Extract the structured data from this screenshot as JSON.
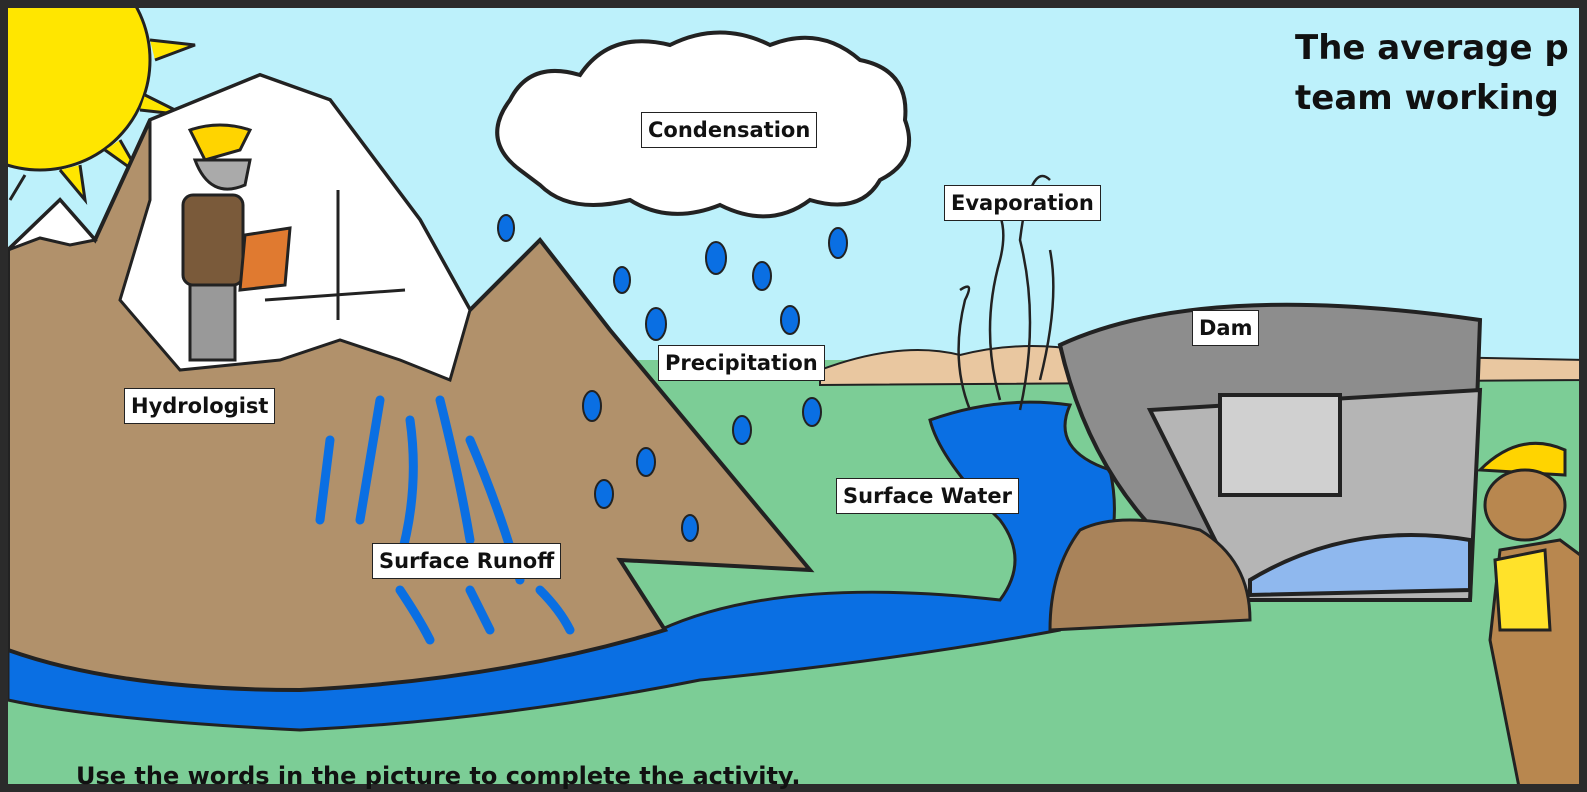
{
  "header": {
    "lines": [
      "The average p",
      "team working"
    ]
  },
  "labels": [
    "Condensation",
    "Evaporation",
    "Dam",
    "Precipitation",
    "Hydrologist",
    "Surface Water",
    "Surface Runoff"
  ],
  "footer": {
    "instruction": "Use the words in the picture to complete the activity."
  }
}
